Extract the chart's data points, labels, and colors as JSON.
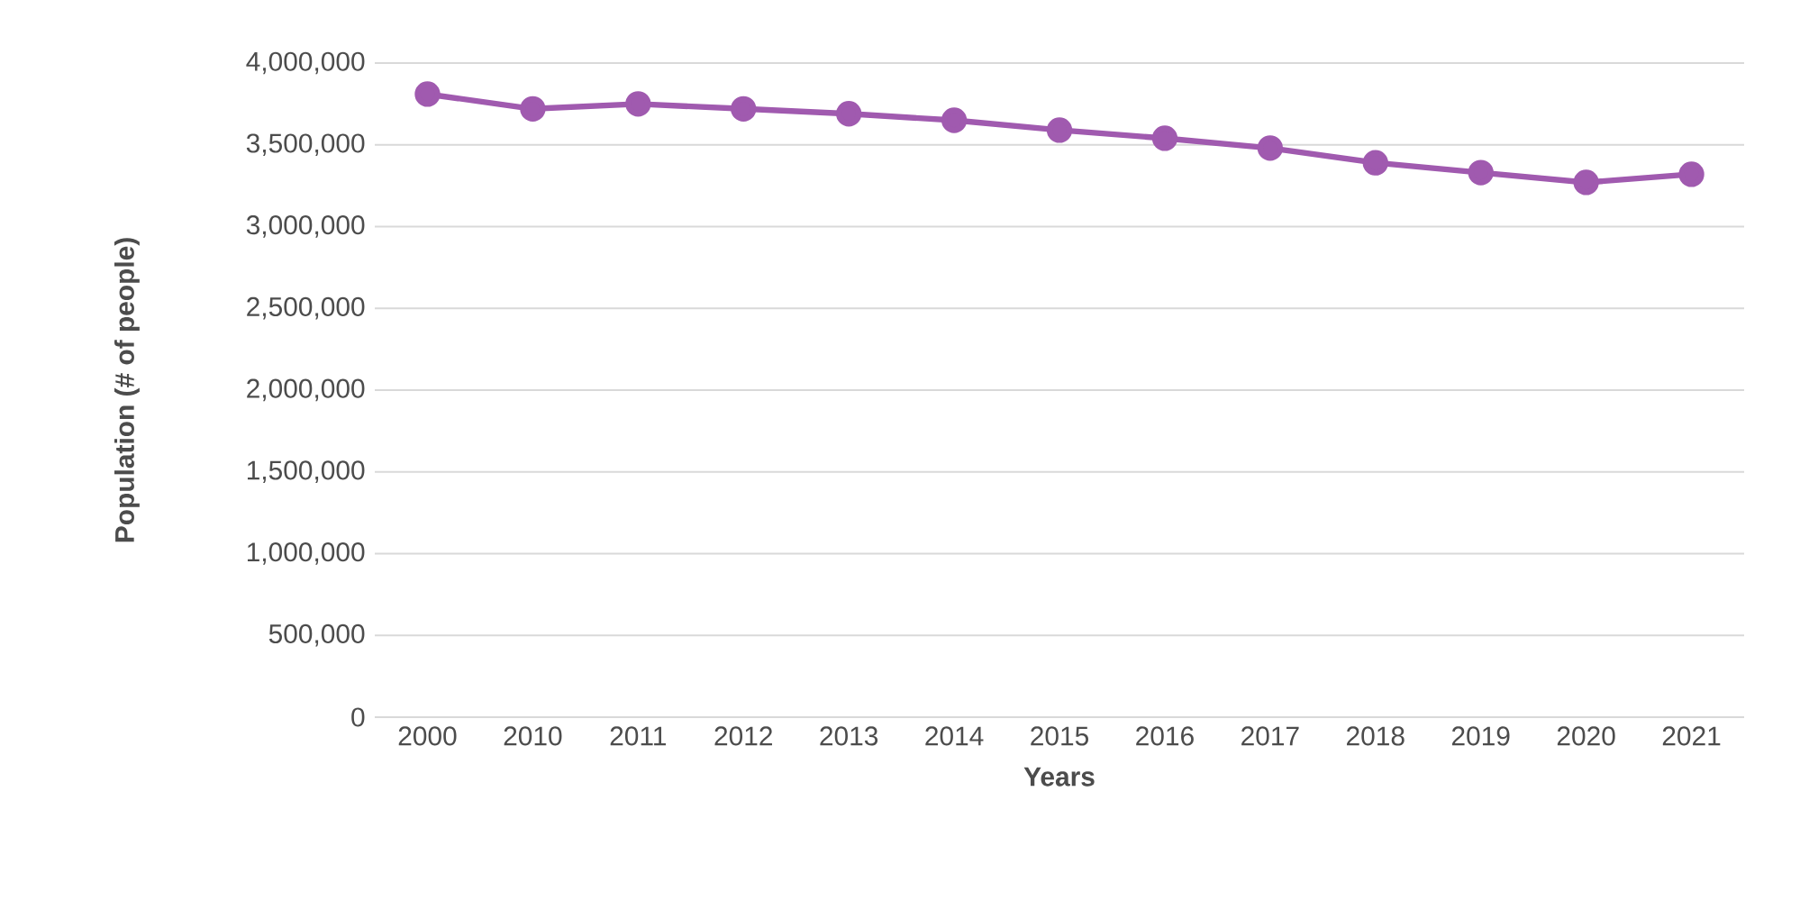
{
  "chart_data": {
    "type": "line",
    "xlabel": "Years",
    "ylabel": "Population (# of people)",
    "categories": [
      "2000",
      "2010",
      "2011",
      "2012",
      "2013",
      "2014",
      "2015",
      "2016",
      "2017",
      "2018",
      "2019",
      "2020",
      "2021"
    ],
    "series": [
      {
        "color": "#a05aaf",
        "values": [
          3810000,
          3720000,
          3750000,
          3720000,
          3690000,
          3650000,
          3590000,
          3540000,
          3480000,
          3390000,
          3330000,
          3270000,
          3320000
        ]
      }
    ],
    "ylim": [
      0,
      4000000
    ],
    "yticks": [
      {
        "value": 0,
        "label": "0"
      },
      {
        "value": 500000,
        "label": "500,000"
      },
      {
        "value": 1000000,
        "label": "1,000,000"
      },
      {
        "value": 1500000,
        "label": "1,500,000"
      },
      {
        "value": 2000000,
        "label": "2,000,000"
      },
      {
        "value": 2500000,
        "label": "2,500,000"
      },
      {
        "value": 3000000,
        "label": "3,000,000"
      },
      {
        "value": 3500000,
        "label": "3,500,000"
      },
      {
        "value": 4000000,
        "label": "4,000,000"
      }
    ],
    "grid": "y",
    "marker": "circle",
    "line_style": "solid"
  }
}
